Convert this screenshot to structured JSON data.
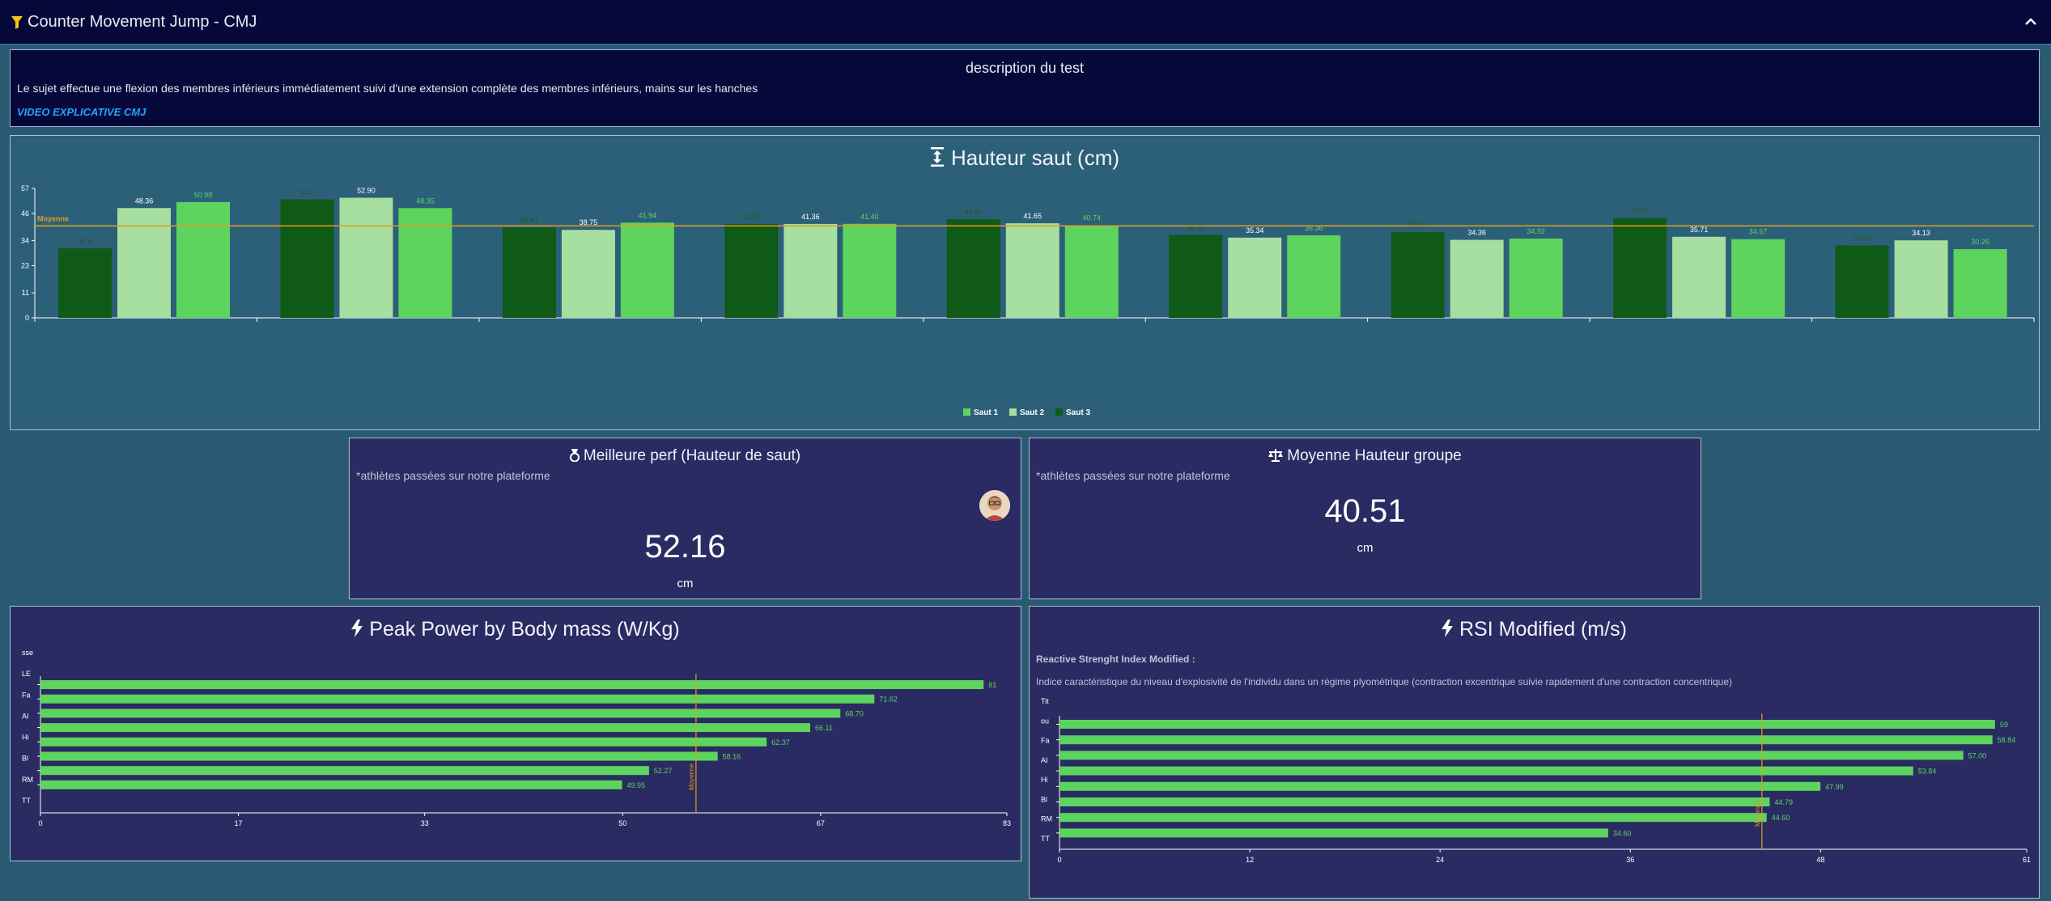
{
  "header": {
    "title": "Counter Movement Jump - CMJ",
    "filter_icon": "filter-icon",
    "collapse_icon": "chevron-up-icon"
  },
  "description": {
    "heading": "description du test",
    "text": "Le sujet effectue une flexion des membres inférieurs immédiatement suivi d'une extension complète des membres inférieurs, mains sur les hanches",
    "video_link": "VIDEO EXPLICATIVE CMJ"
  },
  "colors": {
    "saut1": "#5dd45d",
    "saut2": "#a6dfa0",
    "saut3": "#0f5a16",
    "average_line": "#e39d1d",
    "link": "#1ea7ff"
  },
  "hauteur": {
    "title": "Hauteur saut (cm)",
    "icon": "arrows-vertical-icon"
  },
  "best": {
    "title": "Meilleure perf (Hauteur de saut)",
    "note": "*athlètes passées sur notre plateforme",
    "value": "52.16",
    "unit": "cm",
    "icon": "medal-icon"
  },
  "moyenne": {
    "title": "Moyenne Hauteur groupe",
    "note": "*athlètes passées sur notre plateforme",
    "value": "40.51",
    "unit": "cm",
    "icon": "balance-icon"
  },
  "peak": {
    "title": "Peak Power by Body mass (W/Kg)",
    "icon": "lightning-icon"
  },
  "rsi": {
    "title": "RSI Modified (m/s)",
    "subtitle": "Reactive Strenght Index Modified :",
    "description": "Indice caractéristique du niveau d'explosivité de l'individu dans un régime plyométrique (contraction excentrique suivie rapidement d'une contraction concentrique)",
    "icon": "lightning-icon"
  },
  "chart_data": [
    {
      "type": "bar",
      "title": "Hauteur saut (cm)",
      "categories": [
        "",
        "",
        "",
        "",
        "",
        "",
        "",
        "",
        ""
      ],
      "series": [
        {
          "name": "Saut 3",
          "values": [
            30.6,
            52.2,
            39.81,
            41.34,
            43.42,
            36.5,
            37.8,
            43.96,
            31.86
          ]
        },
        {
          "name": "Saut 2",
          "values": [
            48.36,
            52.9,
            38.75,
            41.36,
            41.65,
            35.34,
            34.36,
            35.71,
            34.13
          ]
        },
        {
          "name": "Saut 1",
          "values": [
            50.98,
            48.35,
            41.94,
            41.4,
            40.74,
            36.36,
            34.92,
            34.67,
            30.26
          ]
        }
      ],
      "point_labels": [
        [
          "30.6",
          "48.36",
          "50.98"
        ],
        [
          "52.2",
          "52.90",
          "48.35"
        ],
        [
          "39.81",
          "38.75",
          "41.94"
        ],
        [
          "41.34",
          "41.36",
          "41.40"
        ],
        [
          "43.42",
          "41.65",
          "40.74"
        ],
        [
          "36.50",
          "35.34",
          "36.36"
        ],
        [
          "37.80",
          "34.36",
          "34.92"
        ],
        [
          "43.96",
          "35.71",
          "34.67"
        ],
        [
          "31.86",
          "34.13",
          "30.26"
        ]
      ],
      "average": {
        "label": "Moyenne",
        "value": 40.51
      },
      "yticks": [
        0,
        11,
        23,
        34,
        46,
        57
      ],
      "ylim": [
        0,
        57
      ],
      "legend": [
        "Saut 1",
        "Saut 2",
        "Saut 3"
      ],
      "legend_position": "bottom-center"
    },
    {
      "type": "bar",
      "orientation": "horizontal",
      "title": "Peak Power by Body mass (W/Kg)",
      "values": [
        81,
        71.62,
        68.7,
        66.11,
        62.37,
        58.16,
        52.27,
        49.95
      ],
      "value_labels": [
        "81",
        "71.62",
        "68.70",
        "66.11",
        "62.37",
        "58.16",
        "52.27",
        "49.95"
      ],
      "average": {
        "label": "Moyenne",
        "value": 56.3
      },
      "xticks": [
        "0",
        "17",
        "33",
        "50",
        "67",
        "83"
      ],
      "xlim": [
        0,
        83
      ],
      "row_label_fragments": [
        "sse",
        "LE",
        "Fa",
        "AI",
        "Hi",
        "Bl",
        "RM",
        "TT"
      ]
    },
    {
      "type": "bar",
      "orientation": "horizontal",
      "title": "RSI Modified (m/s)",
      "values": [
        59,
        58.84,
        57.0,
        53.84,
        47.99,
        44.79,
        44.6,
        34.6
      ],
      "value_labels": [
        "59",
        "58.84",
        "57.00",
        "53.84",
        "47.99",
        "44.79",
        "44.60",
        "34.60"
      ],
      "average": {
        "label": "Moyenne",
        "value": 44.3
      },
      "xticks": [
        "0",
        "12",
        "24",
        "36",
        "48",
        "61"
      ],
      "xlim": [
        0,
        61
      ],
      "row_label_fragments": [
        "Tit",
        "ou",
        "Fa",
        "AI",
        "Hi",
        "Bl",
        "RM",
        "TT"
      ]
    }
  ]
}
